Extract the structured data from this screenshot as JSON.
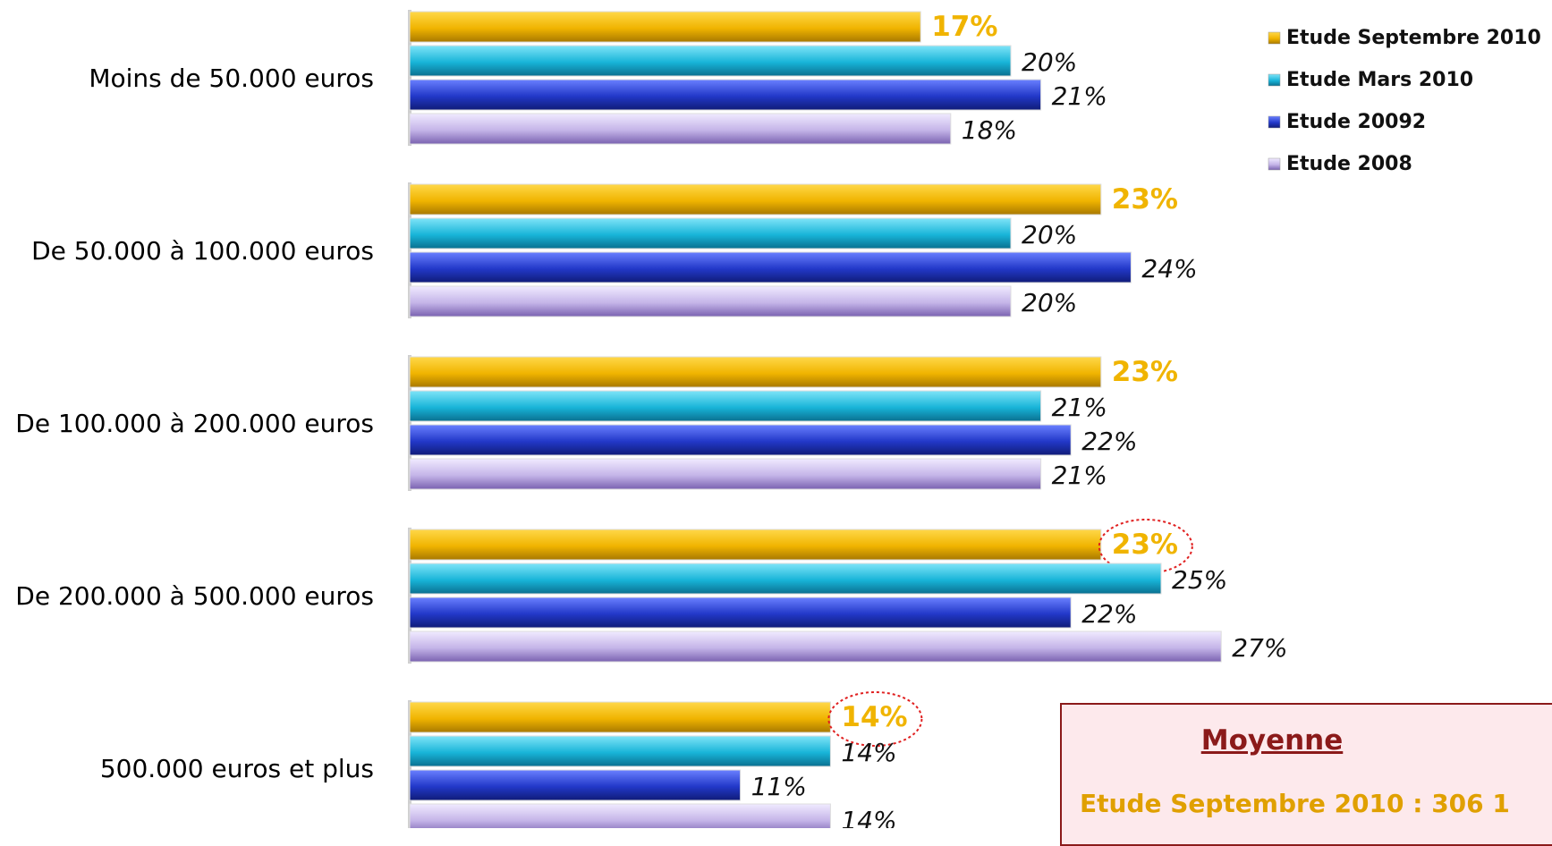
{
  "chart_data": {
    "type": "bar",
    "orientation": "horizontal",
    "categories": [
      "Moins de 50.000 euros",
      "De 50.000 à 100.000 euros",
      "De 100.000 à 200.000 euros",
      "De 200.000 à 500.000 euros",
      "500.000 euros et plus"
    ],
    "series": [
      {
        "name": "Etude Septembre 2010",
        "values": [
          17,
          23,
          23,
          23,
          14
        ],
        "labels": [
          "17%",
          "23%",
          "23%",
          "23%",
          "14%"
        ],
        "color": "#f0b400"
      },
      {
        "name": "Etude Mars 2010",
        "values": [
          20,
          20,
          21,
          25,
          14
        ],
        "labels": [
          "20%",
          "20%",
          "21%",
          "25%",
          "14%"
        ],
        "color": "#18b4d8"
      },
      {
        "name": "Etude 20092",
        "values": [
          21,
          24,
          22,
          22,
          11
        ],
        "labels": [
          "21%",
          "24%",
          "22%",
          "22%",
          "11%"
        ],
        "color": "#2238c8"
      },
      {
        "name": "Etude 2008",
        "values": [
          18,
          20,
          21,
          27,
          14
        ],
        "labels": [
          "18%",
          "20%",
          "21%",
          "27%",
          "14%"
        ],
        "color": "#b8a8e0"
      }
    ],
    "highlight_circles": [
      [
        0,
        3
      ],
      [
        0,
        4
      ]
    ],
    "legend_position": "top-right",
    "xlim": [
      0,
      27
    ],
    "grid": false
  },
  "moyenne": {
    "title": "Moyenne",
    "line": "Etude Septembre 2010 : 306 1"
  }
}
